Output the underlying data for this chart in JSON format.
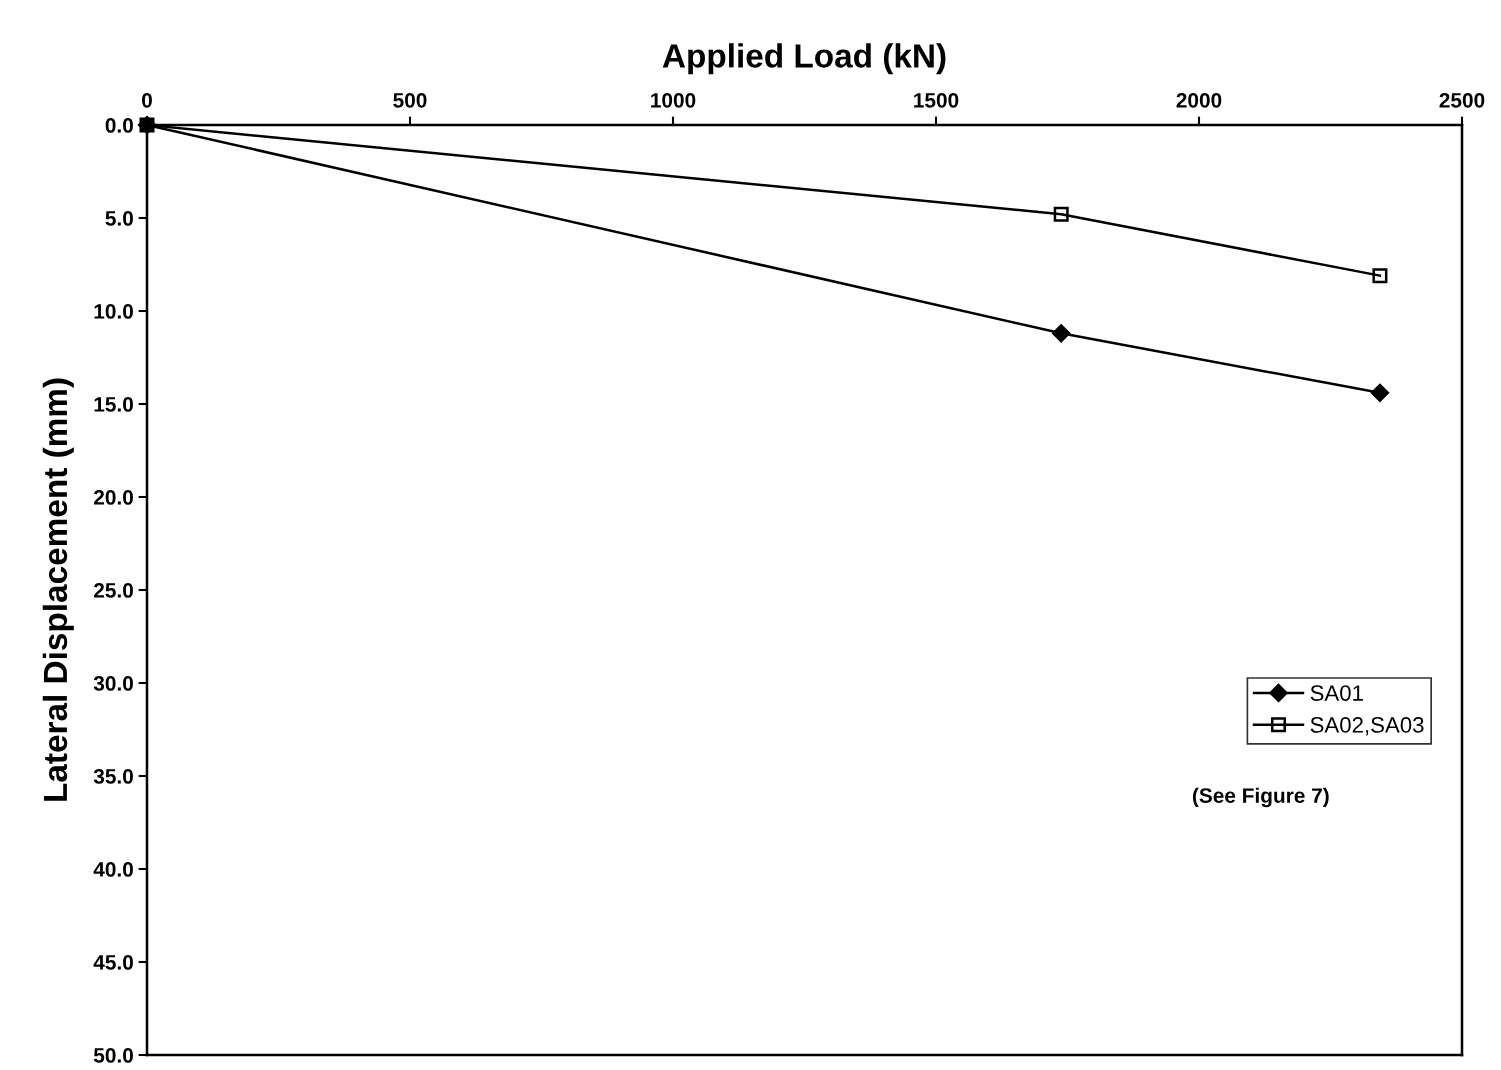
{
  "chart_data": {
    "type": "line",
    "xlabel": "Applied Load (kN)",
    "ylabel": "Lateral Displacement (mm)",
    "xlim": [
      0,
      2500
    ],
    "xticks": [
      0,
      500,
      1000,
      1500,
      2000,
      2500
    ],
    "ylim": [
      50,
      0
    ],
    "yticks": [
      {
        "value": 0,
        "label": "0.0"
      },
      {
        "value": 5,
        "label": "5.0"
      },
      {
        "value": 10,
        "label": "10.0"
      },
      {
        "value": 15,
        "label": "15.0"
      },
      {
        "value": 20,
        "label": "20.0"
      },
      {
        "value": 25,
        "label": "25.0"
      },
      {
        "value": 30,
        "label": "30.0"
      },
      {
        "value": 35,
        "label": "35.0"
      },
      {
        "value": 40,
        "label": "40.0"
      },
      {
        "value": 45,
        "label": "45.0"
      },
      {
        "value": 50,
        "label": "50.0"
      }
    ],
    "series": [
      {
        "name": "SA01",
        "color": "#000000",
        "marker": "diamond",
        "x": [
          0,
          1738,
          2344
        ],
        "values": [
          0,
          11.2,
          14.4
        ]
      },
      {
        "name": "SA02,SA03",
        "color": "#000000",
        "marker": "square",
        "x": [
          0,
          1738,
          2344
        ],
        "values": [
          0,
          4.8,
          8.1
        ]
      }
    ],
    "legend": "right",
    "grid": false,
    "line_style": "solid",
    "annotations": [
      "(See Figure 7)"
    ]
  }
}
